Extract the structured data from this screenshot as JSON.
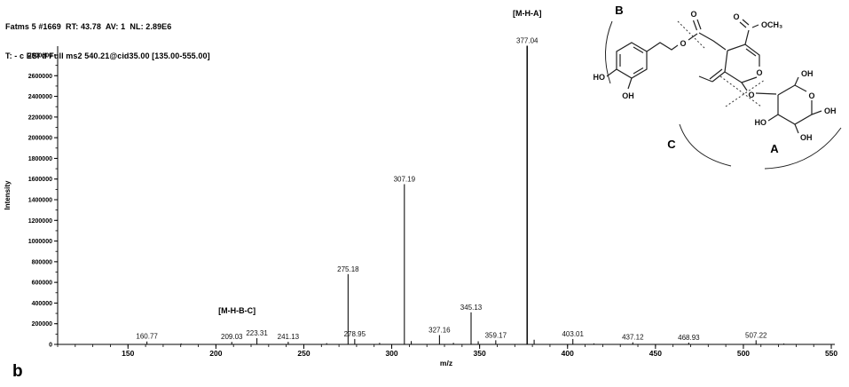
{
  "header": {
    "line1": "Fatms 5 #1669  RT: 43.78  AV: 1  NL: 2.89E6",
    "line2": "T: - c ESI d Full ms2 540.21@cid35.00 [135.00-555.00]"
  },
  "figure_label": "b",
  "chart_data": {
    "type": "bar",
    "subtype": "ms2-mass-spectrum",
    "title": "",
    "xlabel": "m/z",
    "ylabel": "Intensity",
    "xlim": [
      110,
      552
    ],
    "ylim": [
      0,
      2800000
    ],
    "x_major_ticks": [
      150,
      200,
      250,
      300,
      350,
      400,
      450,
      500,
      550
    ],
    "x_minor_tick_step": 10,
    "y_major_ticks": [
      0,
      200000,
      400000,
      600000,
      800000,
      1000000,
      1200000,
      1400000,
      1600000,
      1800000,
      2000000,
      2200000,
      2400000,
      2600000,
      2800000
    ],
    "y_minor_tick_step": 100000,
    "grid": false,
    "legend": false,
    "peaks": [
      {
        "mz": 160.77,
        "intensity": 28000,
        "label": "160.77"
      },
      {
        "mz": 180.2,
        "intensity": 9000,
        "label": ""
      },
      {
        "mz": 209.03,
        "intensity": 24000,
        "label": "209.03"
      },
      {
        "mz": 223.31,
        "intensity": 60000,
        "label": "223.31"
      },
      {
        "mz": 241.13,
        "intensity": 25000,
        "label": "241.13"
      },
      {
        "mz": 263.0,
        "intensity": 12000,
        "label": ""
      },
      {
        "mz": 275.18,
        "intensity": 680000,
        "label": "275.18"
      },
      {
        "mz": 278.95,
        "intensity": 52000,
        "label": "278.95"
      },
      {
        "mz": 293.1,
        "intensity": 15000,
        "label": ""
      },
      {
        "mz": 307.19,
        "intensity": 1550000,
        "label": "307.19"
      },
      {
        "mz": 311.1,
        "intensity": 32000,
        "label": ""
      },
      {
        "mz": 327.16,
        "intensity": 90000,
        "label": "327.16"
      },
      {
        "mz": 335.1,
        "intensity": 15000,
        "label": ""
      },
      {
        "mz": 345.13,
        "intensity": 310000,
        "label": "345.13"
      },
      {
        "mz": 349.2,
        "intensity": 30000,
        "label": ""
      },
      {
        "mz": 359.17,
        "intensity": 40000,
        "label": "359.17"
      },
      {
        "mz": 377.04,
        "intensity": 2890000,
        "label": "377.04"
      },
      {
        "mz": 381.0,
        "intensity": 45000,
        "label": ""
      },
      {
        "mz": 403.01,
        "intensity": 52000,
        "label": "403.01"
      },
      {
        "mz": 415.0,
        "intensity": 10000,
        "label": ""
      },
      {
        "mz": 437.12,
        "intensity": 20000,
        "label": "437.12"
      },
      {
        "mz": 468.93,
        "intensity": 17000,
        "label": "468.93"
      },
      {
        "mz": 507.22,
        "intensity": 40000,
        "label": "507.22"
      },
      {
        "mz": 523.0,
        "intensity": 9000,
        "label": ""
      }
    ],
    "annotations": [
      {
        "text": "[M-H-A]",
        "mz": 377.04,
        "intensity": 3180000
      },
      {
        "text": "[M-H-B-C]",
        "mz": 212,
        "intensity": 300000
      }
    ]
  },
  "structure": {
    "fragment_b": "B",
    "fragment_c": "C",
    "fragment_a": "A",
    "catechol_ho": "HO",
    "catechol_oh": "OH",
    "ester_o": "O",
    "ester_carbonyl_o": "O",
    "methylester_carbonyl_o": "O",
    "methylester_och3": "OCH₃",
    "pyran_ring_o": "O",
    "glycosidic_o": "O",
    "glucose_ring_o": "O",
    "glucose_oh_top": "OH",
    "glucose_oh_right": "OH",
    "glucose_oh_bottom": "OH",
    "glucose_ho": "HO"
  }
}
